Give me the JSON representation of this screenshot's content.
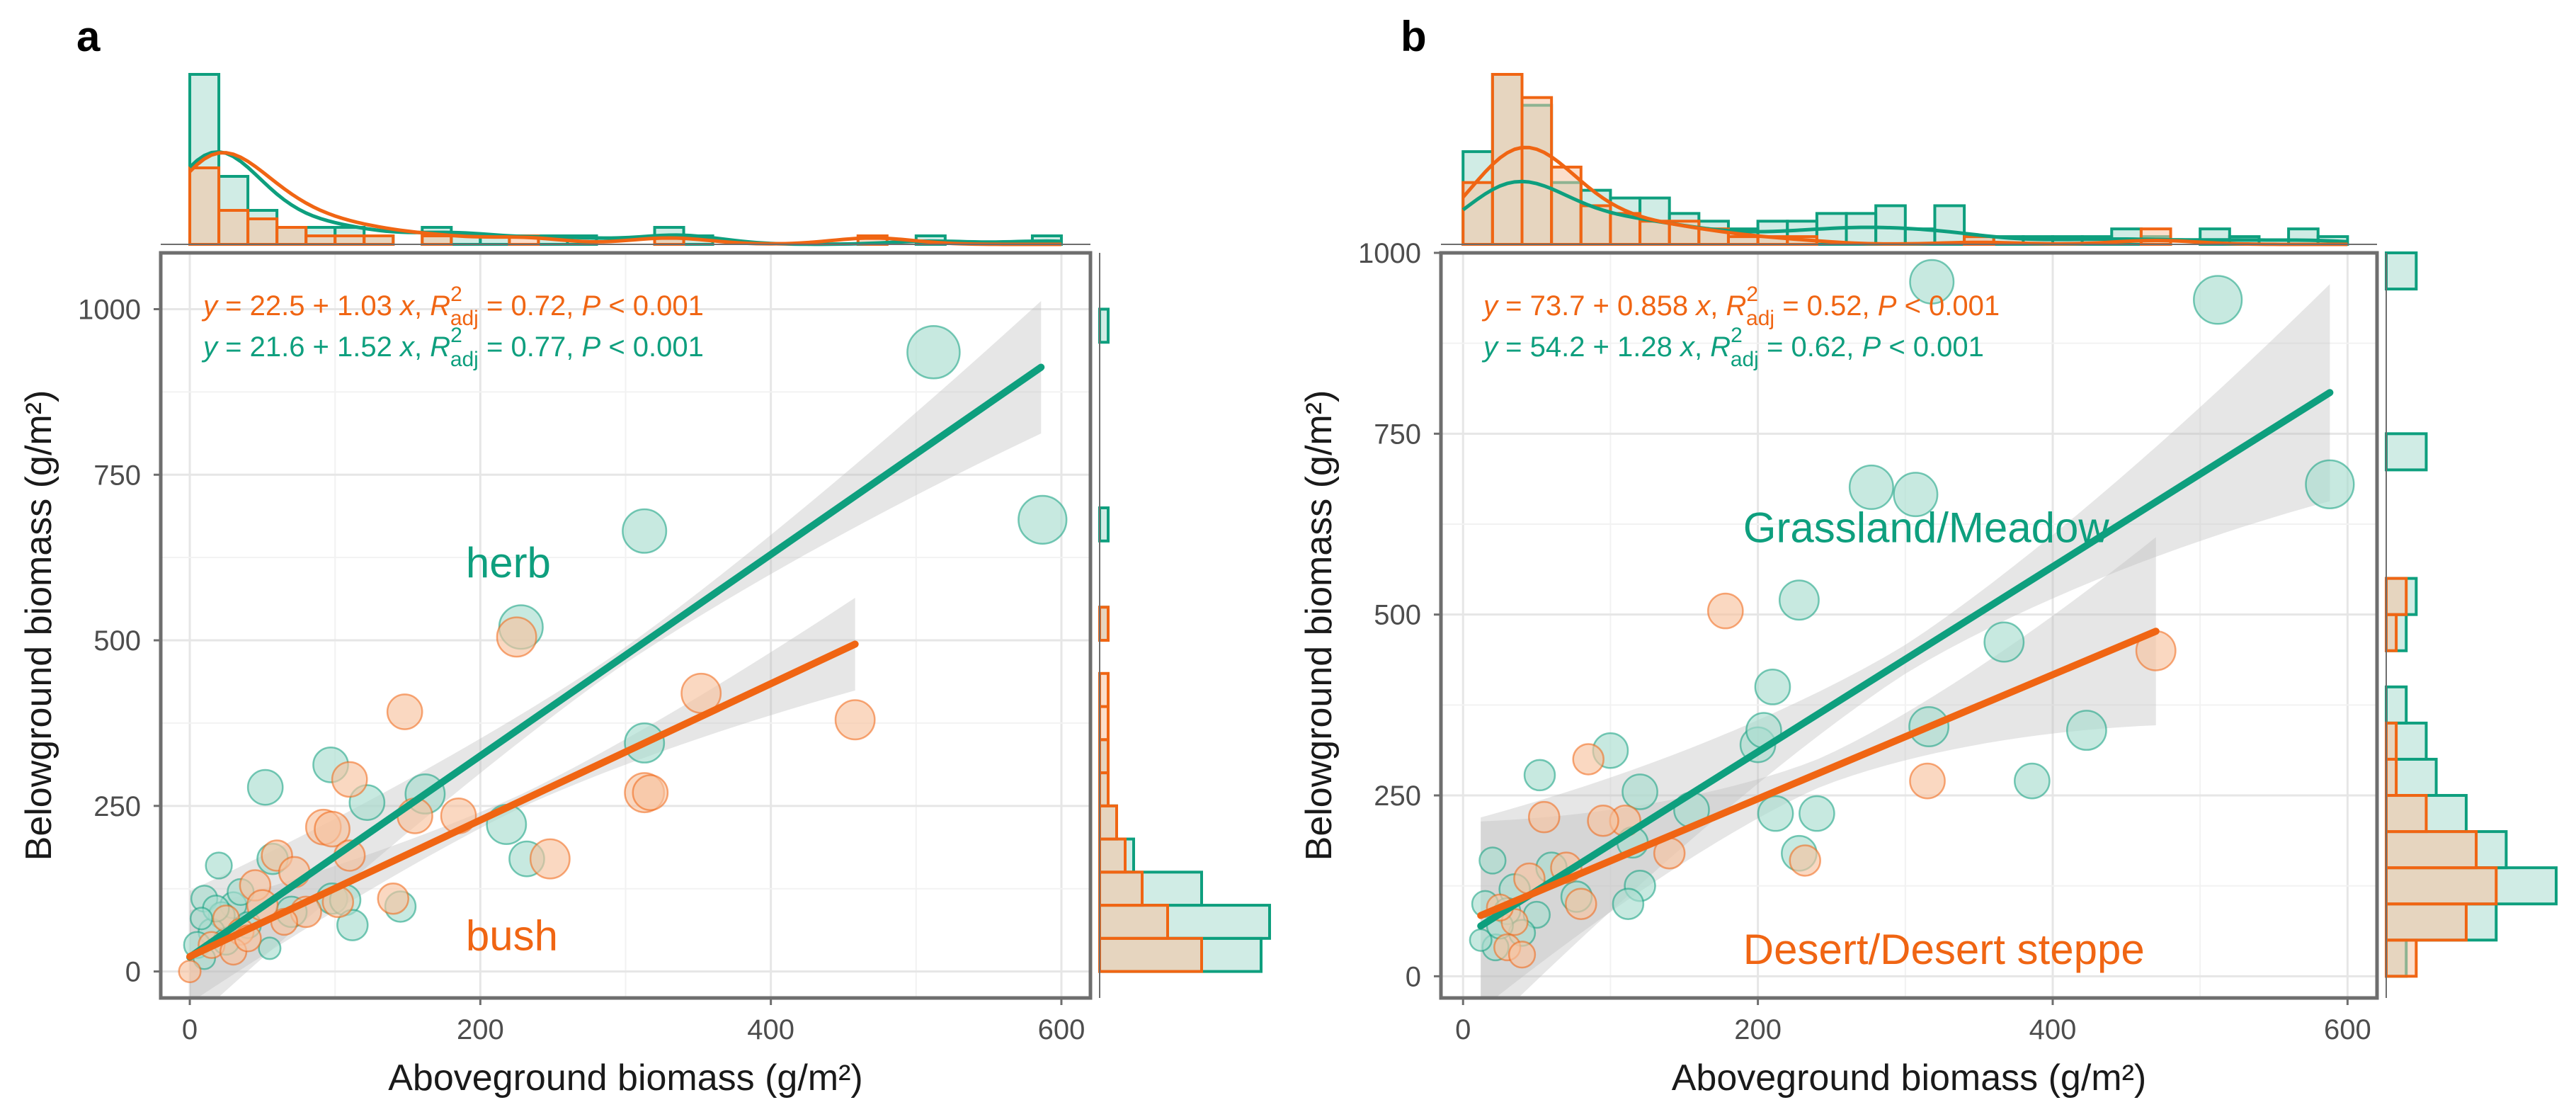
{
  "colors": {
    "herb": "#0e9f7e",
    "bush": "#f06513",
    "herb_fill": "#a9ddd0",
    "bush_fill": "#f8c3a0",
    "ci": "#bdbdbd"
  },
  "chart_data": [
    {
      "panel": "a",
      "type": "scatter",
      "xlabel": "Aboveground biomass (g/m²)",
      "ylabel": "Belowground biomass (g/m²)",
      "xlim": [
        -20,
        620
      ],
      "ylim": [
        -40,
        1085
      ],
      "xticks": [
        0,
        200,
        400,
        600
      ],
      "yticks": [
        0,
        250,
        500,
        750,
        1000
      ],
      "grid": true,
      "equations": [
        {
          "series": "bush",
          "prefix": "y = 22.5 + 1.03 x, ",
          "r_label": "R",
          "r_sup": "2",
          "r_sub": "adj",
          "stat": " = 0.72, ",
          "p_label": "P",
          "p_value": " < 0.001"
        },
        {
          "series": "herb",
          "prefix": "y = 21.6 + 1.52 x, ",
          "r_label": "R",
          "r_sup": "2",
          "r_sub": "adj",
          "stat": " = 0.77, ",
          "p_label": "P",
          "p_value": " < 0.001"
        }
      ],
      "category_labels": [
        {
          "series": "herb",
          "text": "herb",
          "x": 190,
          "y": 595
        },
        {
          "series": "bush",
          "text": "bush",
          "x": 190,
          "y": 32
        }
      ],
      "series": [
        {
          "name": "herb",
          "fit": {
            "x": [
              0,
              586
            ],
            "intercept": 21.6,
            "slope": 1.52,
            "ci_start": 12,
            "ci_end": 100
          },
          "points": [
            [
              512,
              935,
              5
            ],
            [
              587,
              682,
              4.5
            ],
            [
              313,
              665,
              4
            ],
            [
              228,
              520,
              4
            ],
            [
              162,
              268,
              3.5
            ],
            [
              218,
              222,
              3.5
            ],
            [
              232,
              170,
              3
            ],
            [
              313,
              345,
              3.5
            ],
            [
              97,
              312,
              3
            ],
            [
              52,
              278,
              3
            ],
            [
              122,
              255,
              3
            ],
            [
              57,
              170,
              2.5
            ],
            [
              98,
              110,
              2.5
            ],
            [
              107,
              108,
              2.5
            ],
            [
              145,
              98,
              2.5
            ],
            [
              112,
              70,
              2.5
            ],
            [
              20,
              160,
              2
            ],
            [
              10,
              110,
              2
            ],
            [
              30,
              100,
              2
            ],
            [
              22,
              85,
              2
            ],
            [
              35,
              120,
              2
            ],
            [
              15,
              60,
              2
            ],
            [
              5,
              40,
              2
            ],
            [
              10,
              20,
              1.5
            ],
            [
              25,
              45,
              2
            ],
            [
              40,
              70,
              2
            ],
            [
              55,
              35,
              1.5
            ],
            [
              18,
              95,
              2
            ],
            [
              70,
              90,
              2.5
            ],
            [
              8,
              80,
              1.5
            ]
          ]
        },
        {
          "name": "bush",
          "fit": {
            "x": [
              0,
              458
            ],
            "intercept": 22.5,
            "slope": 1.03,
            "ci_start": 10,
            "ci_end": 70
          },
          "points": [
            [
              225,
              505,
              3.5
            ],
            [
              352,
              420,
              3.5
            ],
            [
              458,
              380,
              3.5
            ],
            [
              148,
              392,
              3
            ],
            [
              110,
              290,
              3
            ],
            [
              92,
              218,
              3
            ],
            [
              98,
              215,
              3
            ],
            [
              155,
              235,
              3
            ],
            [
              185,
              235,
              3
            ],
            [
              248,
              170,
              3.5
            ],
            [
              313,
              270,
              3.5
            ],
            [
              317,
              270,
              3
            ],
            [
              110,
              175,
              2.5
            ],
            [
              140,
              110,
              2.5
            ],
            [
              60,
              175,
              2.5
            ],
            [
              72,
              150,
              2.5
            ],
            [
              45,
              130,
              2.5
            ],
            [
              50,
              100,
              2.5
            ],
            [
              80,
              90,
              2.5
            ],
            [
              102,
              105,
              2.5
            ],
            [
              25,
              80,
              2
            ],
            [
              35,
              60,
              2
            ],
            [
              15,
              40,
              2
            ],
            [
              30,
              30,
              2
            ],
            [
              0,
              0,
              1.5
            ],
            [
              40,
              50,
              2
            ],
            [
              65,
              75,
              2
            ]
          ]
        }
      ],
      "top_hist": {
        "bins": [
          0,
          20,
          40,
          60,
          80,
          100,
          120,
          140,
          160,
          180,
          200,
          220,
          240,
          260,
          280,
          300,
          320,
          340,
          360,
          380,
          400,
          420,
          440,
          460,
          480,
          500,
          520,
          540,
          560,
          580,
          600
        ],
        "herb": [
          20,
          8,
          4,
          2,
          2,
          2,
          1,
          0,
          2,
          1,
          1,
          0,
          1,
          1,
          0,
          0,
          2,
          1,
          0,
          0,
          0,
          0,
          0,
          0,
          0,
          1,
          0,
          0,
          0,
          1
        ],
        "bush": [
          9,
          4,
          3,
          2,
          1,
          1,
          1,
          0,
          1,
          0,
          0,
          1,
          0,
          0,
          0,
          0,
          1,
          0,
          0,
          0,
          0,
          0,
          0,
          1,
          0,
          0,
          0,
          0,
          0,
          0
        ]
      },
      "right_hist": {
        "bins": [
          0,
          50,
          100,
          150,
          200,
          250,
          300,
          350,
          400,
          450,
          500,
          550,
          600,
          650,
          700,
          750,
          800,
          850,
          900,
          950,
          1000
        ],
        "herb": [
          19,
          20,
          12,
          4,
          2,
          1,
          1,
          0,
          0,
          0,
          1,
          0,
          0,
          1,
          0,
          0,
          0,
          0,
          0,
          1,
          0
        ],
        "bush": [
          12,
          8,
          5,
          3,
          2,
          1,
          1,
          1,
          1,
          0,
          1,
          0,
          0,
          0,
          0,
          0,
          0,
          0,
          0,
          0,
          0
        ]
      }
    },
    {
      "panel": "b",
      "type": "scatter",
      "xlabel": "Aboveground biomass (g/m²)",
      "ylabel": "Belowground biomass (g/m²)",
      "xlim": [
        -15,
        620
      ],
      "ylim": [
        -30,
        1000
      ],
      "xticks": [
        0,
        200,
        400,
        600
      ],
      "yticks": [
        0,
        250,
        500,
        750,
        1000
      ],
      "grid": true,
      "equations": [
        {
          "series": "bush",
          "prefix": "y = 73.7 + 0.858 x, ",
          "r_label": "R",
          "r_sup": "2",
          "r_sub": "adj",
          "stat": " = 0.52, ",
          "p_label": "P",
          "p_value": " < 0.001"
        },
        {
          "series": "herb",
          "prefix": "y = 54.2 + 1.28 x, ",
          "r_label": "R",
          "r_sup": "2",
          "r_sub": "adj",
          "stat": " = 0.62, ",
          "p_label": "P",
          "p_value": " < 0.001"
        }
      ],
      "category_labels": [
        {
          "series": "herb",
          "text": "Grassland/Meadow",
          "x": 190,
          "y": 600
        },
        {
          "series": "bush",
          "text": "Desert/Desert steppe",
          "x": 190,
          "y": 17
        }
      ],
      "series": [
        {
          "name": "herb",
          "fit": {
            "x": [
              12,
              588
            ],
            "intercept": 54.2,
            "slope": 1.28,
            "ci_start": 20,
            "ci_end": 150
          },
          "points": [
            [
              512,
              935,
              4.5
            ],
            [
              588,
              680,
              4.5
            ],
            [
              318,
              960,
              4
            ],
            [
              277,
              676,
              4
            ],
            [
              307,
              666,
              4
            ],
            [
              228,
              520,
              3.5
            ],
            [
              367,
              462,
              3.5
            ],
            [
              423,
              340,
              3.5
            ],
            [
              386,
              270,
              3
            ],
            [
              316,
              345,
              3.5
            ],
            [
              210,
              400,
              3
            ],
            [
              200,
              320,
              3
            ],
            [
              204,
              340,
              3
            ],
            [
              120,
              255,
              3
            ],
            [
              100,
              312,
              3
            ],
            [
              240,
              225,
              3
            ],
            [
              212,
              225,
              3
            ],
            [
              228,
              170,
              3
            ],
            [
              155,
              230,
              3
            ],
            [
              115,
              185,
              2.5
            ],
            [
              120,
              125,
              2.5
            ],
            [
              112,
              100,
              2.5
            ],
            [
              77,
              110,
              2.5
            ],
            [
              52,
              278,
              2.5
            ],
            [
              60,
              150,
              2.5
            ],
            [
              35,
              120,
              2.5
            ],
            [
              20,
              160,
              2
            ],
            [
              15,
              100,
              2
            ],
            [
              30,
              90,
              2
            ],
            [
              50,
              85,
              2
            ],
            [
              40,
              60,
              2
            ],
            [
              22,
              40,
              2
            ],
            [
              12,
              50,
              1.5
            ],
            [
              25,
              70,
              2
            ]
          ]
        },
        {
          "name": "bush",
          "fit": {
            "x": [
              12,
              470
            ],
            "intercept": 73.7,
            "slope": 0.858,
            "ci_start": 20,
            "ci_end": 130
          },
          "points": [
            [
              178,
              505,
              3
            ],
            [
              470,
              450,
              3.5
            ],
            [
              315,
              270,
              3
            ],
            [
              232,
              160,
              2.5
            ],
            [
              140,
              170,
              2.5
            ],
            [
              110,
              215,
              2.5
            ],
            [
              95,
              215,
              2.5
            ],
            [
              85,
              300,
              2.5
            ],
            [
              70,
              150,
              2.5
            ],
            [
              55,
              220,
              2.5
            ],
            [
              45,
              135,
              2.5
            ],
            [
              80,
              100,
              2.5
            ],
            [
              35,
              75,
              2
            ],
            [
              25,
              95,
              2
            ],
            [
              30,
              40,
              2
            ],
            [
              40,
              30,
              2
            ]
          ]
        }
      ],
      "top_hist": {
        "bins": [
          0,
          20,
          40,
          60,
          80,
          100,
          120,
          140,
          160,
          180,
          200,
          220,
          240,
          260,
          280,
          300,
          320,
          340,
          360,
          380,
          400,
          420,
          440,
          460,
          480,
          500,
          520,
          540,
          560,
          580,
          600
        ],
        "herb": [
          12,
          22,
          18,
          8,
          7,
          6,
          6,
          4,
          3,
          2,
          3,
          3,
          4,
          4,
          5,
          2,
          5,
          1,
          1,
          1,
          1,
          1,
          2,
          1,
          0,
          2,
          1,
          0,
          2,
          1
        ],
        "bush": [
          8,
          22,
          19,
          10,
          5,
          4,
          3,
          3,
          2,
          1,
          1,
          1,
          0,
          0,
          0,
          0,
          0,
          1,
          0,
          0,
          0,
          0,
          0,
          2,
          0,
          0,
          0,
          0,
          0,
          0
        ]
      },
      "right_hist": {
        "bins": [
          0,
          50,
          100,
          150,
          200,
          250,
          300,
          350,
          400,
          450,
          500,
          550,
          600,
          650,
          700,
          750,
          800,
          850,
          900,
          950,
          1000
        ],
        "herb": [
          2,
          11,
          17,
          12,
          8,
          5,
          4,
          2,
          0,
          2,
          3,
          0,
          0,
          0,
          4,
          0,
          0,
          0,
          0,
          3,
          0
        ],
        "bush": [
          3,
          8,
          11,
          9,
          4,
          1,
          1,
          0,
          0,
          1,
          2,
          0,
          0,
          0,
          0,
          0,
          0,
          0,
          0,
          0,
          0
        ]
      }
    }
  ]
}
